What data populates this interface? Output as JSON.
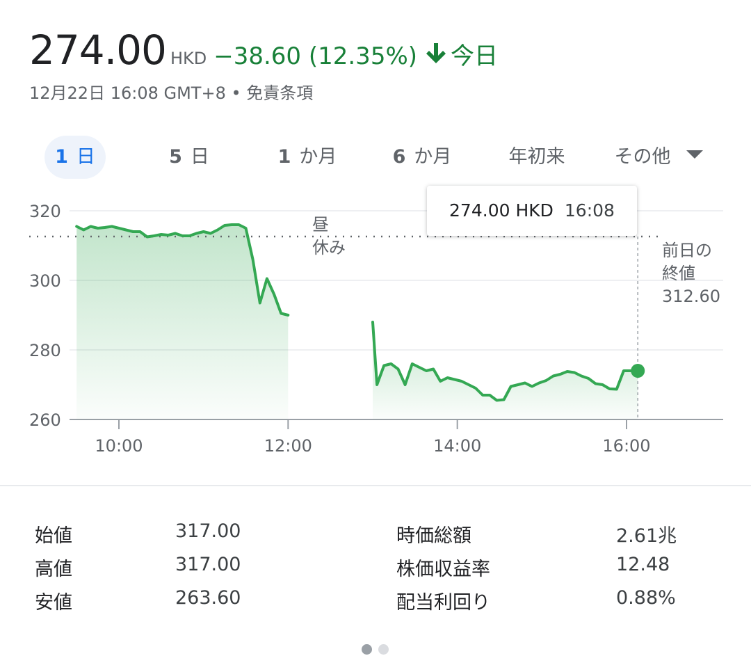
{
  "header": {
    "price": "274.00",
    "currency": "HKD",
    "change": "−38.60 (12.35%)",
    "period_label": "今日",
    "timestamp": "12月22日 16:08 GMT+8 • 免責条項"
  },
  "tabs": [
    {
      "num": "1",
      "unit": "日",
      "active": true
    },
    {
      "num": "5",
      "unit": "日",
      "active": false
    },
    {
      "num": "1",
      "unit": "か月",
      "active": false
    },
    {
      "num": "6",
      "unit": "か月",
      "active": false
    },
    {
      "num": "",
      "unit": "年初来",
      "active": false
    },
    {
      "num": "",
      "unit": "その他",
      "active": false,
      "dropdown": true
    }
  ],
  "tooltip": {
    "price": "274.00 HKD",
    "time": "16:08"
  },
  "chart_data": {
    "type": "line",
    "y_ticks": [
      "320",
      "300",
      "280",
      "260"
    ],
    "x_ticks": [
      "10:00",
      "12:00",
      "14:00",
      "16:00"
    ],
    "ylim": [
      260,
      320
    ],
    "xlim": [
      "09:30",
      "17:00"
    ],
    "lunch_break_label": [
      "昼",
      "休み"
    ],
    "previous_close": 312.6,
    "previous_close_label": [
      "前日の",
      "終値",
      "312.60"
    ],
    "line_color": "#34a853",
    "series": [
      {
        "segment": "morning",
        "x": [
          "09:30",
          "09:35",
          "09:40",
          "09:45",
          "09:50",
          "09:55",
          "10:00",
          "10:05",
          "10:10",
          "10:15",
          "10:20",
          "10:25",
          "10:30",
          "10:35",
          "10:40",
          "10:45",
          "10:50",
          "10:55",
          "11:00",
          "11:05",
          "11:10",
          "11:15",
          "11:20",
          "11:25",
          "11:30",
          "11:35",
          "11:40",
          "11:45",
          "11:50",
          "11:55",
          "12:00"
        ],
        "y": [
          315.5,
          314.5,
          315.5,
          315.0,
          315.2,
          315.5,
          315.0,
          314.5,
          314.0,
          314.0,
          312.5,
          312.8,
          313.2,
          313.0,
          313.5,
          312.8,
          312.8,
          313.5,
          314.0,
          313.5,
          314.5,
          315.8,
          316.0,
          316.0,
          315.0,
          306.0,
          293.5,
          300.5,
          296.0,
          290.5,
          290.0
        ]
      },
      {
        "segment": "afternoon",
        "x": [
          "13:00",
          "13:03",
          "13:08",
          "13:13",
          "13:18",
          "13:23",
          "13:28",
          "13:33",
          "13:38",
          "13:43",
          "13:48",
          "13:53",
          "13:58",
          "14:03",
          "14:08",
          "14:13",
          "14:18",
          "14:23",
          "14:28",
          "14:33",
          "14:38",
          "14:43",
          "14:48",
          "14:53",
          "14:58",
          "15:03",
          "15:08",
          "15:13",
          "15:18",
          "15:23",
          "15:28",
          "15:33",
          "15:38",
          "15:43",
          "15:48",
          "15:53",
          "15:58",
          "16:03",
          "16:08"
        ],
        "y": [
          288.0,
          270.0,
          275.5,
          276.0,
          274.5,
          270.0,
          276.0,
          275.0,
          274.0,
          274.5,
          271.0,
          272.0,
          271.5,
          271.0,
          270.0,
          269.0,
          267.0,
          267.0,
          265.5,
          265.7,
          269.5,
          270.0,
          270.5,
          269.5,
          270.5,
          271.2,
          272.5,
          273.0,
          273.8,
          273.5,
          272.5,
          271.8,
          270.3,
          270.0,
          268.8,
          268.7,
          274.0,
          274.0,
          274.0
        ]
      }
    ]
  },
  "stats": {
    "left": [
      {
        "label": "始値",
        "value": "317.00"
      },
      {
        "label": "高値",
        "value": "317.00"
      },
      {
        "label": "安値",
        "value": "263.60"
      }
    ],
    "right": [
      {
        "label": "時価総額",
        "value": "2.61兆"
      },
      {
        "label": "株価収益率",
        "value": "12.48"
      },
      {
        "label": "配当利回り",
        "value": "0.88%"
      }
    ]
  },
  "colors": {
    "positive_text": "#188038",
    "accent": "#1a73e8",
    "line": "#34a853",
    "grid": "#e8eaed"
  },
  "pager": {
    "count": 2,
    "active": 0
  }
}
